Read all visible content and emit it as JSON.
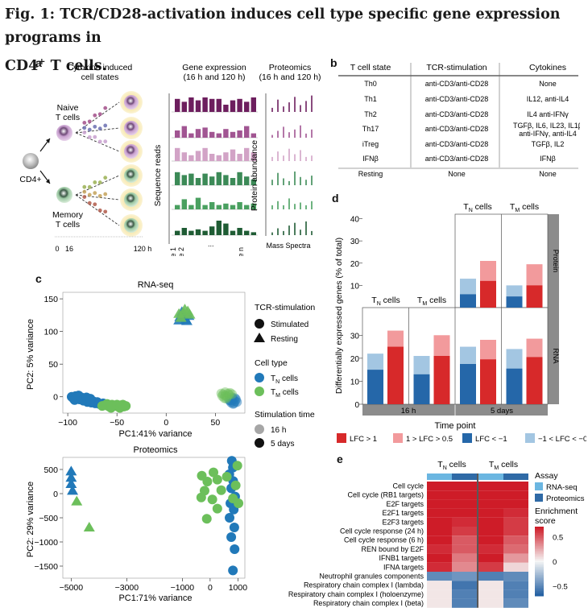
{
  "figure": {
    "title_line1": "Fig. 1: TCR/CD28-activation induces cell type specific gene expression programs in",
    "title_line2_pre": "CD4",
    "title_line2_sup": "+",
    "title_line2_post": " T cells."
  },
  "panel_a": {
    "letter": "a",
    "cytokine_header": [
      "Cytokine induced",
      "cell states"
    ],
    "gene_header": [
      "Gene expression",
      "(16 h and 120 h)"
    ],
    "prot_header": [
      "Proteomics",
      "(16 h and 120 h)"
    ],
    "naive": [
      "Naive",
      "T cells"
    ],
    "memory": [
      "Memory",
      "T cells"
    ],
    "cd4": "CD4+",
    "seq_axis": "Sequence reads",
    "prot_axis": "Protein abundance",
    "gene1": "Gene 1",
    "gene2": "Gene 2",
    "dots": "...",
    "genen": "Gene n",
    "mass_spectra": "Mass Spectra",
    "t0": "0",
    "t16": "16",
    "t120": "120 h",
    "colors": [
      "#6d1e5e",
      "#a15592",
      "#d2a3c6",
      "#3c8a57",
      "#4aa060",
      "#1f5c34"
    ]
  },
  "panel_b": {
    "letter": "b",
    "headers": [
      "T cell state",
      "TCR-stimulation",
      "Cytokines"
    ],
    "rows": [
      [
        "Th0",
        "anti-CD3/anti-CD28",
        "None"
      ],
      [
        "Th1",
        "anti-CD3/anti-CD28",
        "IL12, anti-IL4"
      ],
      [
        "Th2",
        "anti-CD3/anti-CD28",
        "IL4 anti-IFNγ"
      ],
      [
        "Th17",
        "anti-CD3/anti-CD28",
        "TGFβ, IL6, IL23, IL1β|anti-IFNγ, anti-IL4"
      ],
      [
        "iTreg",
        "anti-CD3/anti-CD28",
        "TGFβ, IL2"
      ],
      [
        "IFNβ",
        "anti-CD3/anti-CD28",
        "IFNβ"
      ],
      [
        "Resting",
        "None",
        "None"
      ]
    ]
  },
  "panel_c": {
    "letter": "c",
    "rna_title": "RNA-seq",
    "rna_xlabel": "PC1:41% variance",
    "rna_ylabel": "PC2: 5% variance",
    "rna_xticks": [
      "−100",
      "−50",
      "0",
      "50"
    ],
    "rna_yticks": [
      "0",
      "50",
      "100",
      "150"
    ],
    "prot_title": "Proteomics",
    "prot_xlabel": "PC1:71% variance",
    "prot_ylabel": "PC2: 29% variance",
    "prot_xticks": [
      "−5000",
      "−3000",
      "−1000",
      "0",
      "1000"
    ],
    "prot_yticks": [
      "500",
      "0",
      "−500",
      "−1000",
      "−1500"
    ],
    "legend": {
      "tcr_title": "TCR-stimulation",
      "stimulated": "Stimulated",
      "resting": "Resting",
      "celltype_title": "Cell type",
      "tn": "T",
      "tn_sub": "N",
      "tm": "T",
      "tm_sub": "M",
      "cells": " cells",
      "time_title": "Stimulation time",
      "t16": "16 h",
      "t5": "5 days"
    },
    "colors": {
      "tn": "#2179b9",
      "tm": "#6cbf5b"
    }
  },
  "panel_d": {
    "letter": "d",
    "ylabel": "Differentially expressed genes (% of total)",
    "xlabel": "Time point",
    "yticks": [
      "0",
      "10",
      "20",
      "30",
      "40"
    ],
    "group_labels": [
      "16 h",
      "5 days"
    ],
    "facets": [
      "Protein",
      "RNA"
    ],
    "tn_label": "T",
    "tn_sub": "N",
    "tm_label": "T",
    "tm_sub": "M",
    "cells": " cells",
    "legend": [
      "LFC > 1",
      "1 > LFC > 0.5",
      "LFC < −1",
      "−1 < LFC < −0.5"
    ],
    "colors": {
      "up_strong": "#d7292a",
      "up_weak": "#f29a9c",
      "down_strong": "#2567a9",
      "down_weak": "#a3c6e2"
    }
  },
  "panel_e": {
    "letter": "e",
    "tn_label": "T",
    "tn_sub": "N",
    "tm_label": "T",
    "tm_sub": "M",
    "cells": " cells",
    "rows": [
      "Cell cycle",
      "Cell cycle (RB1 targets)",
      "E2F targets",
      "E2F1 targets",
      "E2F3 targets",
      "Cell cycle response (24 h)",
      "Cell cycle response (6 h)",
      "REN bound by E2F",
      "IFNB1 targets",
      "IFNA targets",
      "Neutrophil granules components",
      "Respiratory chain complex I (lambda)",
      "Respiratory chain complex I (holoenzyme)",
      "Respiratory chain complex I (beta)"
    ],
    "assay_title": "Assay",
    "assay_rna": "RNA-seq",
    "assay_prot": "Proteomics",
    "score_title": [
      "Enrichment",
      "score"
    ],
    "score_ticks": [
      "0.5",
      "0",
      "−0.5"
    ],
    "colors": {
      "rna": "#6bb6e1",
      "prot": "#2f6aa6"
    }
  },
  "chart_data": [
    {
      "type": "scatter",
      "title": "RNA-seq",
      "xlabel": "PC1:41% variance",
      "ylabel": "PC2: 5% variance",
      "xlim": [
        -105,
        80
      ],
      "ylim": [
        -25,
        160
      ],
      "series": [
        {
          "name": "TN stimulated 16 h",
          "color": "#2179b9",
          "alpha": 0.5,
          "shape": "circle",
          "points": [
            [
              65,
              -6
            ],
            [
              68,
              -3
            ],
            [
              70,
              -7
            ],
            [
              66,
              -9
            ],
            [
              71,
              -4
            ],
            [
              67,
              -1
            ],
            [
              69,
              -10
            ],
            [
              64,
              -5
            ],
            [
              72,
              -8
            ],
            [
              70,
              -2
            ],
            [
              66,
              -6
            ],
            [
              68,
              -11
            ]
          ]
        },
        {
          "name": "TM stimulated 16 h",
          "color": "#6cbf5b",
          "alpha": 0.45,
          "shape": "circle",
          "points": [
            [
              60,
              2
            ],
            [
              63,
              5
            ],
            [
              58,
              4
            ],
            [
              62,
              0
            ],
            [
              65,
              6
            ],
            [
              60,
              7
            ],
            [
              57,
              1
            ],
            [
              64,
              3
            ],
            [
              59,
              -2
            ],
            [
              67,
              4
            ],
            [
              61,
              -3
            ],
            [
              56,
              5
            ]
          ]
        },
        {
          "name": "TN stimulated 5 days",
          "color": "#2179b9",
          "alpha": 1,
          "shape": "circle",
          "points": [
            [
              -96,
              0
            ],
            [
              -94,
              -3
            ],
            [
              -92,
              1
            ],
            [
              -90,
              -2
            ],
            [
              -88,
              -4
            ],
            [
              -86,
              -1
            ],
            [
              -84,
              -6
            ],
            [
              -82,
              -3
            ],
            [
              -80,
              -8
            ],
            [
              -78,
              -5
            ],
            [
              -76,
              -9
            ],
            [
              -74,
              -7
            ],
            [
              -72,
              -10
            ],
            [
              -70,
              -8
            ],
            [
              -68,
              -11
            ],
            [
              -93,
              -5
            ],
            [
              -89,
              2
            ],
            [
              -85,
              -5
            ],
            [
              -81,
              -1
            ],
            [
              -77,
              -3
            ],
            [
              -66,
              -12
            ],
            [
              -64,
              -10
            ]
          ]
        },
        {
          "name": "TM stimulated 5 days",
          "color": "#6cbf5b",
          "alpha": 1,
          "shape": "circle",
          "points": [
            [
              -62,
              -13
            ],
            [
              -58,
              -15
            ],
            [
              -55,
              -12
            ],
            [
              -52,
              -14
            ],
            [
              -49,
              -15
            ],
            [
              -46,
              -13
            ],
            [
              -43,
              -15
            ],
            [
              -60,
              -11
            ],
            [
              -56,
              -17
            ],
            [
              -50,
              -12
            ],
            [
              -47,
              -17
            ],
            [
              -44,
              -12
            ],
            [
              -65,
              -14
            ],
            [
              -41,
              -14
            ]
          ]
        },
        {
          "name": "TN resting",
          "color": "#2179b9",
          "alpha": 0.9,
          "shape": "triangle",
          "points": [
            [
              14,
              122
            ],
            [
              17,
              126
            ],
            [
              20,
              118
            ],
            [
              23,
              124
            ],
            [
              16,
              130
            ],
            [
              21,
              116
            ],
            [
              13,
              117
            ]
          ]
        },
        {
          "name": "TM resting",
          "color": "#6cbf5b",
          "alpha": 0.9,
          "shape": "triangle",
          "points": [
            [
              18,
              128
            ],
            [
              22,
              131
            ],
            [
              15,
              121
            ],
            [
              24,
              126
            ],
            [
              19,
              134
            ],
            [
              13,
              127
            ]
          ]
        }
      ]
    },
    {
      "type": "scatter",
      "title": "Proteomics",
      "xlabel": "PC1:71% variance",
      "ylabel": "PC2: 29% variance",
      "xlim": [
        -5300,
        1250
      ],
      "ylim": [
        -1750,
        750
      ],
      "series": [
        {
          "name": "TN resting",
          "color": "#2179b9",
          "shape": "triangle",
          "points": [
            [
              -5000,
              460
            ],
            [
              -5000,
              330
            ],
            [
              -5000,
              200
            ],
            [
              -4950,
              60
            ]
          ]
        },
        {
          "name": "TM resting",
          "color": "#6cbf5b",
          "shape": "triangle",
          "points": [
            [
              -4800,
              -160
            ],
            [
              -4350,
              -700
            ]
          ]
        },
        {
          "name": "TN stimulated",
          "color": "#2179b9",
          "shape": "circle",
          "points": [
            [
              780,
              680
            ],
            [
              820,
              540
            ],
            [
              690,
              400
            ],
            [
              830,
              260
            ],
            [
              760,
              110
            ],
            [
              900,
              -60
            ],
            [
              730,
              -200
            ],
            [
              850,
              -330
            ],
            [
              700,
              -500
            ],
            [
              870,
              -700
            ],
            [
              760,
              -900
            ],
            [
              880,
              -1150
            ],
            [
              820,
              -1590
            ]
          ]
        },
        {
          "name": "TM stimulated",
          "color": "#6cbf5b",
          "shape": "circle",
          "points": [
            [
              -300,
              370
            ],
            [
              -100,
              250
            ],
            [
              120,
              440
            ],
            [
              -200,
              60
            ],
            [
              80,
              -120
            ],
            [
              -320,
              -80
            ],
            [
              260,
              290
            ],
            [
              600,
              350
            ],
            [
              980,
              580
            ],
            [
              920,
              170
            ],
            [
              400,
              70
            ],
            [
              1020,
              -200
            ],
            [
              -120,
              -520
            ],
            [
              260,
              -310
            ],
            [
              820,
              -100
            ]
          ]
        }
      ]
    },
    {
      "type": "bar",
      "title": "Protein",
      "stacked": "diverging-overlap",
      "ylabel": "Differentially expressed genes (% of total)",
      "ylim": [
        0,
        42
      ],
      "groups": [
        "16 h",
        "5 days"
      ],
      "facet_columns": [
        "TN cells",
        "TM cells"
      ],
      "bars": [
        {
          "time": "5 days",
          "cell": "TN",
          "direction": "down",
          "strong": 6,
          "total": 13
        },
        {
          "time": "5 days",
          "cell": "TN",
          "direction": "up",
          "strong": 12,
          "total": 21
        },
        {
          "time": "5 days",
          "cell": "TM",
          "direction": "down",
          "strong": 5,
          "total": 10
        },
        {
          "time": "5 days",
          "cell": "TM",
          "direction": "up",
          "strong": 10,
          "total": 19.5
        }
      ]
    },
    {
      "type": "bar",
      "title": "RNA",
      "stacked": "diverging-overlap",
      "ylabel": "Differentially expressed genes (% of total)",
      "xlabel": "Time point",
      "ylim": [
        0,
        42
      ],
      "groups": [
        "16 h",
        "5 days"
      ],
      "facet_columns": [
        "TN cells",
        "TM cells"
      ],
      "bars": [
        {
          "time": "16 h",
          "cell": "TN",
          "direction": "down",
          "strong": 15,
          "total": 22
        },
        {
          "time": "16 h",
          "cell": "TN",
          "direction": "up",
          "strong": 25,
          "total": 32
        },
        {
          "time": "16 h",
          "cell": "TM",
          "direction": "down",
          "strong": 13,
          "total": 21
        },
        {
          "time": "16 h",
          "cell": "TM",
          "direction": "up",
          "strong": 21,
          "total": 30
        },
        {
          "time": "5 days",
          "cell": "TN",
          "direction": "down",
          "strong": 17.5,
          "total": 25
        },
        {
          "time": "5 days",
          "cell": "TN",
          "direction": "up",
          "strong": 19.5,
          "total": 28
        },
        {
          "time": "5 days",
          "cell": "TM",
          "direction": "down",
          "strong": 15.5,
          "total": 24
        },
        {
          "time": "5 days",
          "cell": "TM",
          "direction": "up",
          "strong": 20.5,
          "total": 28.5
        }
      ]
    },
    {
      "type": "heatmap",
      "rows": [
        "Cell cycle",
        "Cell cycle (RB1 targets)",
        "E2F targets",
        "E2F1 targets",
        "E2F3 targets",
        "Cell cycle response (24 h)",
        "Cell cycle response (6 h)",
        "REN bound by E2F",
        "IFNB1 targets",
        "IFNA targets",
        "Neutrophil granules components",
        "Respiratory chain complex I (lambda)",
        "Respiratory chain complex I (holoenzyme)",
        "Respiratory chain complex I (beta)"
      ],
      "columns": [
        "TN RNA-seq",
        "TN Proteomics",
        "TM RNA-seq",
        "TM Proteomics"
      ],
      "values": [
        [
          0.8,
          0.75,
          0.8,
          0.7
        ],
        [
          0.8,
          0.7,
          0.8,
          0.7
        ],
        [
          0.8,
          0.75,
          0.8,
          0.75
        ],
        [
          0.75,
          0.7,
          0.8,
          0.65
        ],
        [
          0.75,
          0.65,
          0.75,
          0.6
        ],
        [
          0.75,
          0.6,
          0.75,
          0.6
        ],
        [
          0.7,
          0.5,
          0.75,
          0.5
        ],
        [
          0.65,
          0.5,
          0.65,
          0.45
        ],
        [
          0.7,
          0.4,
          0.7,
          0.3
        ],
        [
          0.65,
          0.35,
          0.6,
          0.1
        ],
        [
          -0.5,
          -0.45,
          -0.55,
          -0.5
        ],
        [
          0.05,
          -0.6,
          0.05,
          -0.55
        ],
        [
          0.05,
          -0.55,
          0.05,
          -0.55
        ],
        [
          0.05,
          -0.55,
          0.05,
          -0.5
        ]
      ],
      "scale": [
        -0.7,
        0.7
      ]
    }
  ]
}
